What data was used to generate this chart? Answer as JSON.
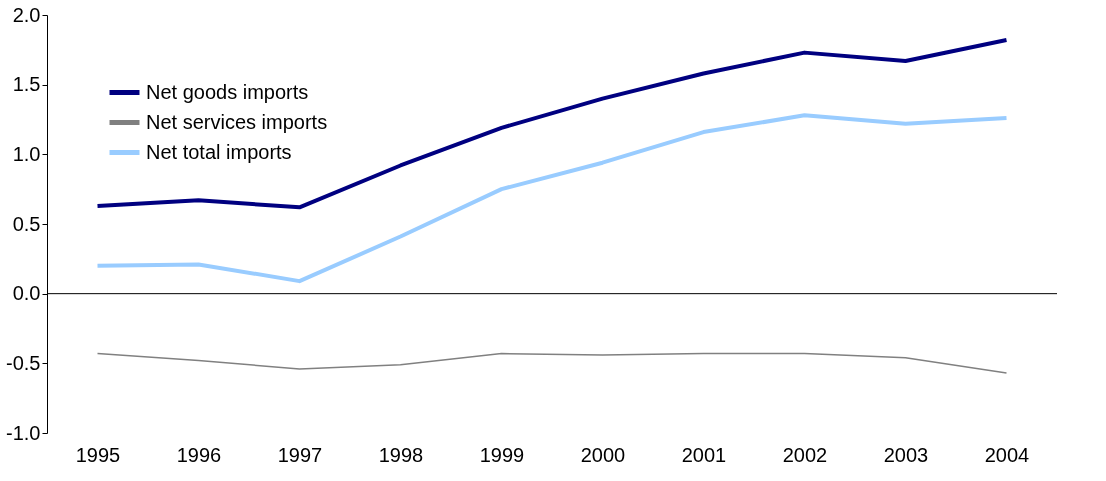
{
  "chart_data": {
    "type": "line",
    "categories": [
      "1995",
      "1996",
      "1997",
      "1998",
      "1999",
      "2000",
      "2001",
      "2002",
      "2003",
      "2004"
    ],
    "series": [
      {
        "name": "Net goods imports",
        "color": "#000080",
        "values": [
          0.63,
          0.67,
          0.62,
          0.92,
          1.19,
          1.4,
          1.58,
          1.73,
          1.67,
          1.82
        ]
      },
      {
        "name": "Net services imports",
        "color": "#808080",
        "values": [
          -0.43,
          -0.48,
          -0.54,
          -0.51,
          -0.43,
          -0.44,
          -0.43,
          -0.43,
          -0.46,
          -0.57
        ]
      },
      {
        "name": "Net total imports",
        "color": "#99ccff",
        "values": [
          0.2,
          0.21,
          0.09,
          0.41,
          0.75,
          0.94,
          1.16,
          1.28,
          1.22,
          1.26
        ]
      }
    ],
    "ylim": [
      -1.0,
      2.0
    ],
    "yticks": [
      {
        "value": -1.0,
        "label": "-1.0"
      },
      {
        "value": -0.5,
        "label": "-0.5"
      },
      {
        "value": 0.0,
        "label": "0.0"
      },
      {
        "value": 0.5,
        "label": "0.5"
      },
      {
        "value": 1.0,
        "label": "1.0"
      },
      {
        "value": 1.5,
        "label": "1.5"
      },
      {
        "value": 2.0,
        "label": "2.0"
      }
    ],
    "ref_lines": [
      {
        "axis": "y",
        "value": 0,
        "color": "#000000"
      }
    ],
    "grid": false,
    "legend": "top left",
    "marker": "none",
    "line_style": "solid"
  }
}
